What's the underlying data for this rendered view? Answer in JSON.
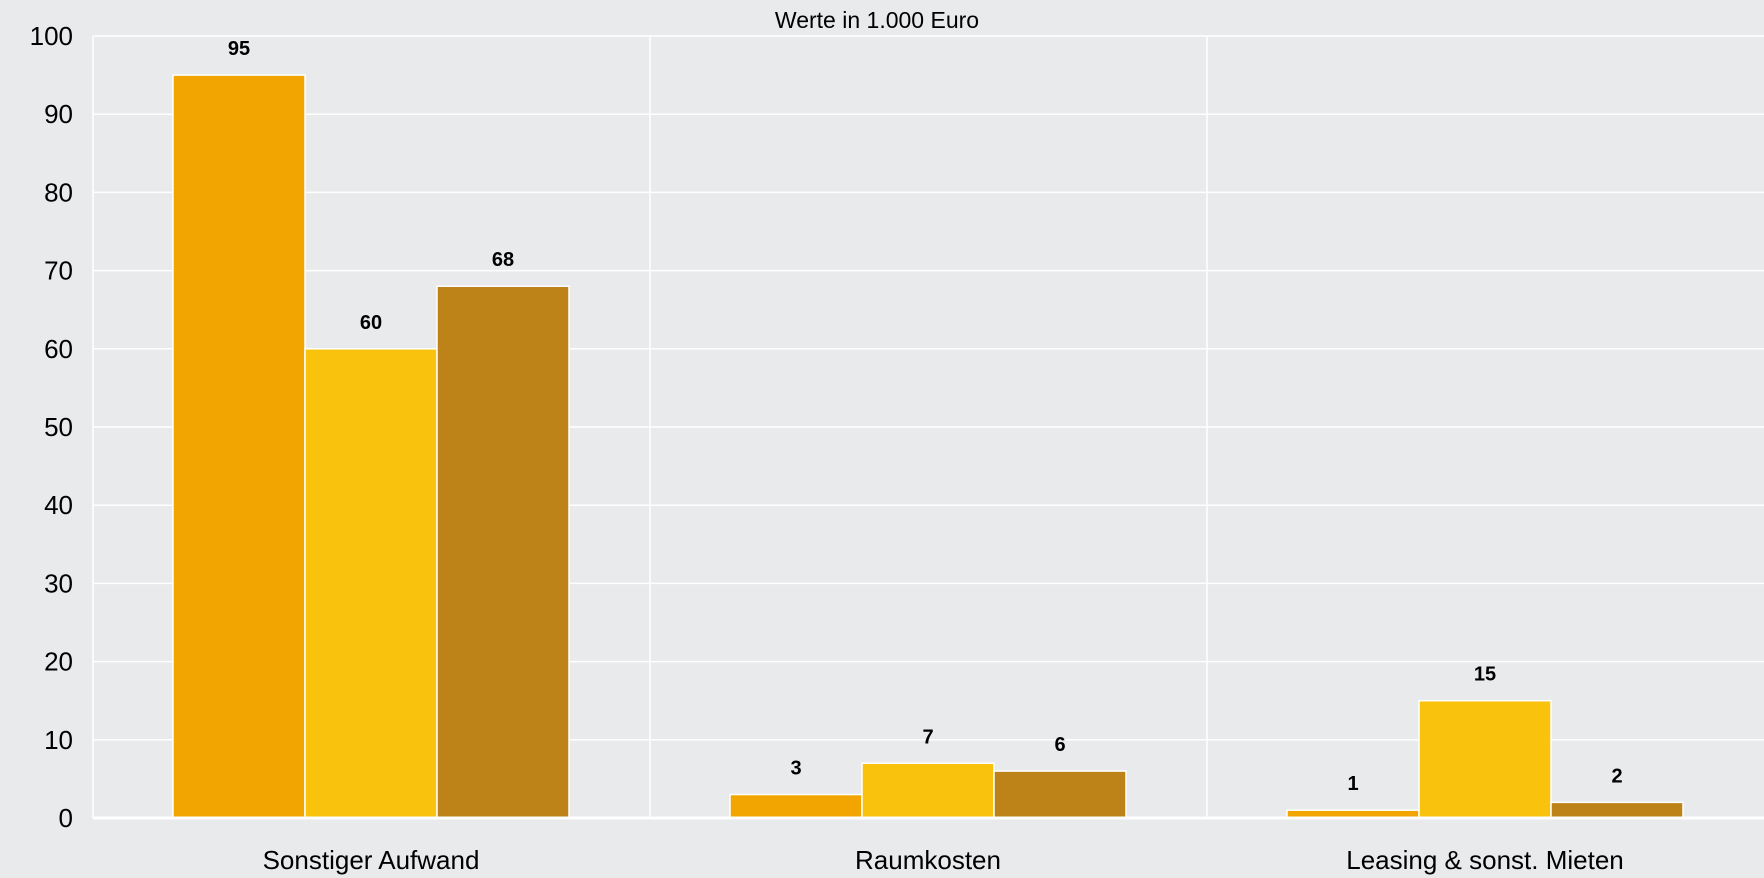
{
  "chart_data": {
    "type": "bar",
    "title": "Werte in 1.000 Euro",
    "categories": [
      "Sonstiger Aufwand",
      "Raumkosten",
      "Leasing & sonst. Mieten"
    ],
    "series": [
      {
        "values": [
          95,
          3,
          1
        ],
        "color": "#f2a500"
      },
      {
        "values": [
          60,
          7,
          15
        ],
        "color": "#f9c20d"
      },
      {
        "values": [
          68,
          6,
          2
        ],
        "color": "#bd8318"
      }
    ],
    "ylim": [
      0,
      100
    ],
    "yticks": [
      0,
      10,
      20,
      30,
      40,
      50,
      60,
      70,
      80,
      90,
      100
    ],
    "grid": true,
    "xlabel": "",
    "ylabel": ""
  }
}
